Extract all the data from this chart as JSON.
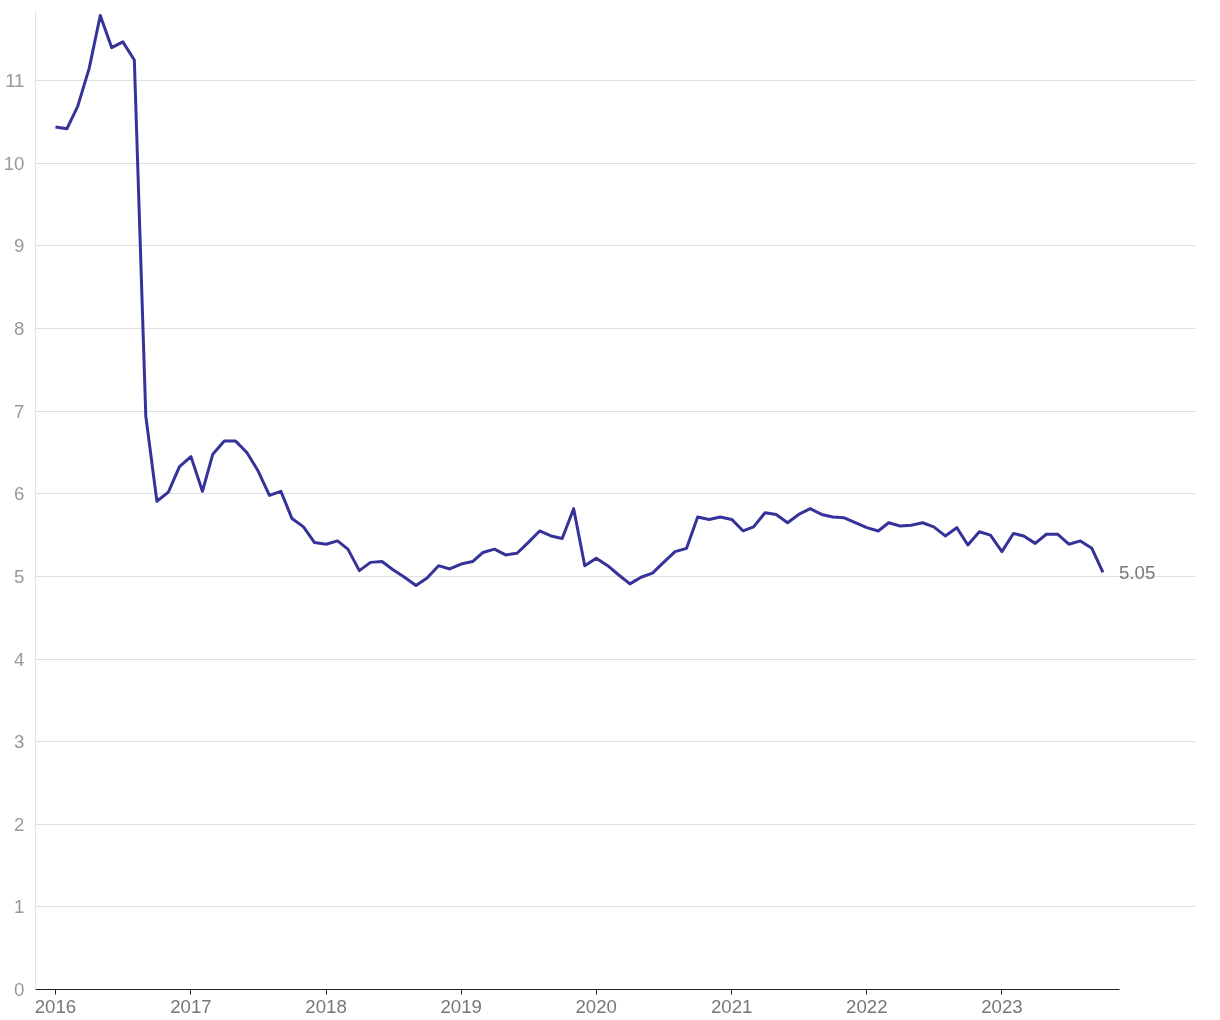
{
  "chart_data": {
    "type": "line",
    "x": [
      "2016-01",
      "2016-02",
      "2016-03",
      "2016-04",
      "2016-05",
      "2016-06",
      "2016-07",
      "2016-08",
      "2016-09",
      "2016-10",
      "2016-11",
      "2016-12",
      "2017-01",
      "2017-02",
      "2017-03",
      "2017-04",
      "2017-05",
      "2017-06",
      "2017-07",
      "2017-08",
      "2017-09",
      "2017-10",
      "2017-11",
      "2017-12",
      "2018-01",
      "2018-02",
      "2018-03",
      "2018-04",
      "2018-05",
      "2018-06",
      "2018-07",
      "2018-08",
      "2018-09",
      "2018-10",
      "2018-11",
      "2018-12",
      "2019-01",
      "2019-02",
      "2019-03",
      "2019-04",
      "2019-05",
      "2019-06",
      "2019-07",
      "2019-08",
      "2019-09",
      "2019-10",
      "2019-11",
      "2019-12",
      "2020-01",
      "2020-02",
      "2020-03",
      "2020-04",
      "2020-05",
      "2020-06",
      "2020-07",
      "2020-08",
      "2020-09",
      "2020-10",
      "2020-11",
      "2020-12",
      "2021-01",
      "2021-02",
      "2021-03",
      "2021-04",
      "2021-05",
      "2021-06",
      "2021-07",
      "2021-08",
      "2021-09",
      "2021-10",
      "2021-11",
      "2021-12",
      "2022-01",
      "2022-02",
      "2022-03",
      "2022-04",
      "2022-05",
      "2022-06",
      "2022-07",
      "2022-08",
      "2022-09",
      "2022-10",
      "2022-11",
      "2022-12",
      "2023-01",
      "2023-02",
      "2023-03",
      "2023-04",
      "2023-05",
      "2023-06",
      "2023-07",
      "2023-08",
      "2023-09",
      "2023-10"
    ],
    "series": [
      {
        "color": "#35339a",
        "values": [
          10.44,
          10.42,
          10.69,
          11.15,
          11.79,
          11.4,
          11.47,
          11.25,
          6.94,
          5.91,
          6.02,
          6.33,
          6.45,
          6.03,
          6.48,
          6.64,
          6.64,
          6.5,
          6.28,
          5.98,
          6.03,
          5.7,
          5.6,
          5.41,
          5.39,
          5.43,
          5.33,
          5.07,
          5.17,
          5.18,
          5.08,
          4.99,
          4.89,
          4.98,
          5.13,
          5.09,
          5.15,
          5.18,
          5.29,
          5.33,
          5.26,
          5.28,
          5.41,
          5.55,
          5.49,
          5.46,
          5.82,
          5.13,
          5.22,
          5.13,
          5.02,
          4.91,
          4.99,
          5.04,
          5.17,
          5.3,
          5.34,
          5.72,
          5.69,
          5.72,
          5.69,
          5.55,
          5.6,
          5.77,
          5.75,
          5.65,
          5.75,
          5.82,
          5.75,
          5.72,
          5.71,
          5.65,
          5.59,
          5.55,
          5.65,
          5.61,
          5.62,
          5.65,
          5.6,
          5.49,
          5.59,
          5.38,
          5.54,
          5.5,
          5.3,
          5.52,
          5.49,
          5.4,
          5.51,
          5.51,
          5.39,
          5.43,
          5.34,
          5.05
        ]
      }
    ],
    "annotations": [
      {
        "text": "5.05",
        "x": "2023-10",
        "y": 5.05
      }
    ],
    "xlim": [
      "2015-11-08",
      "2023-11-15"
    ],
    "xticks": [
      "2016",
      "2017",
      "2018",
      "2019",
      "2020",
      "2021",
      "2022",
      "2023"
    ],
    "ylim": [
      0,
      11.85
    ],
    "yticks": [
      0,
      1,
      2,
      3,
      4,
      5,
      6,
      7,
      8,
      9,
      10,
      11
    ],
    "grid": "y",
    "marker": "none",
    "line_style": "solid"
  }
}
